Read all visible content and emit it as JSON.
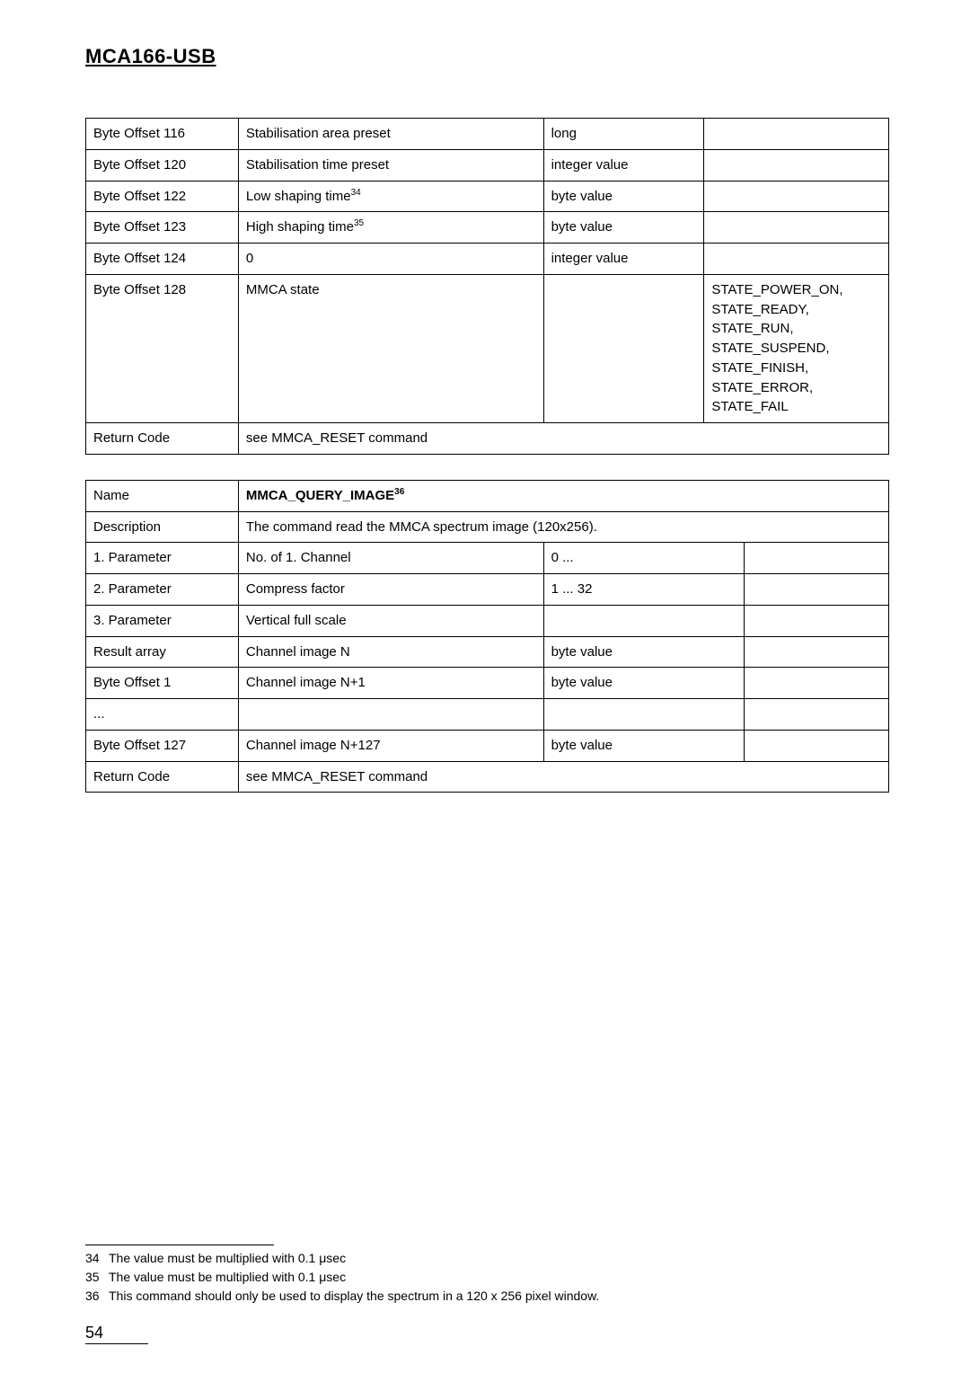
{
  "header": {
    "title": "MCA166-USB"
  },
  "table1": {
    "rows": [
      {
        "c1": "Byte Offset 116",
        "c2": "Stabilisation area preset",
        "c3": "long",
        "c4": ""
      },
      {
        "c1": "Byte Offset 120",
        "c2": "Stabilisation time preset",
        "c3": "integer value",
        "c4": ""
      },
      {
        "c1": "Byte Offset 122",
        "c2": "Low shaping time",
        "c2sup": "34",
        "c3": "byte value",
        "c4": ""
      },
      {
        "c1": "Byte Offset 123",
        "c2": "High shaping time",
        "c2sup": "35",
        "c3": "byte value",
        "c4": ""
      },
      {
        "c1": "Byte Offset 124",
        "c2": "0",
        "c3": "integer value",
        "c4": ""
      },
      {
        "c1": "Byte Offset 128",
        "c2": "MMCA state",
        "c3": "",
        "c4": "STATE_POWER_ON,\nSTATE_READY,\nSTATE_RUN,\nSTATE_SUSPEND,\nSTATE_FINISH,\nSTATE_ERROR,\nSTATE_FAIL"
      },
      {
        "c1": "Return Code",
        "c2span": "see MMCA_RESET command"
      }
    ]
  },
  "table2": {
    "rows": [
      {
        "c1": "Name",
        "c2span_bold": "MMCA_QUERY_IMAGE",
        "c2sup": "36"
      },
      {
        "c1": "Description",
        "c2span": "The command read the MMCA spectrum image (120x256)."
      },
      {
        "c1": "1. Parameter",
        "c2": "No. of 1. Channel",
        "c3": "0 ...",
        "c4": ""
      },
      {
        "c1": "2. Parameter",
        "c2": "Compress factor",
        "c3": "1 ... 32",
        "c4": ""
      },
      {
        "c1": "3. Parameter",
        "c2": "Vertical full scale",
        "c3": "",
        "c4": ""
      },
      {
        "c1": "Result array",
        "c2": "Channel image N",
        "c3": "byte value",
        "c4": ""
      },
      {
        "c1": "Byte Offset 1",
        "c2": "Channel image N+1",
        "c3": "byte value",
        "c4": ""
      },
      {
        "c1": "...",
        "c2": "",
        "c3": "",
        "c4": ""
      },
      {
        "c1": "Byte Offset 127",
        "c2": "Channel image N+127",
        "c3": "byte value",
        "c4": ""
      },
      {
        "c1": "Return Code",
        "c2span": "see MMCA_RESET command"
      }
    ]
  },
  "footnotes": [
    {
      "num": "34",
      "text": "The value must be multiplied with 0.1 μsec"
    },
    {
      "num": "35",
      "text": "The value must be multiplied with 0.1 μsec"
    },
    {
      "num": "36",
      "text": "This command should only be used to display the spectrum in a 120 x 256 pixel window."
    }
  ],
  "pageNumber": "54"
}
